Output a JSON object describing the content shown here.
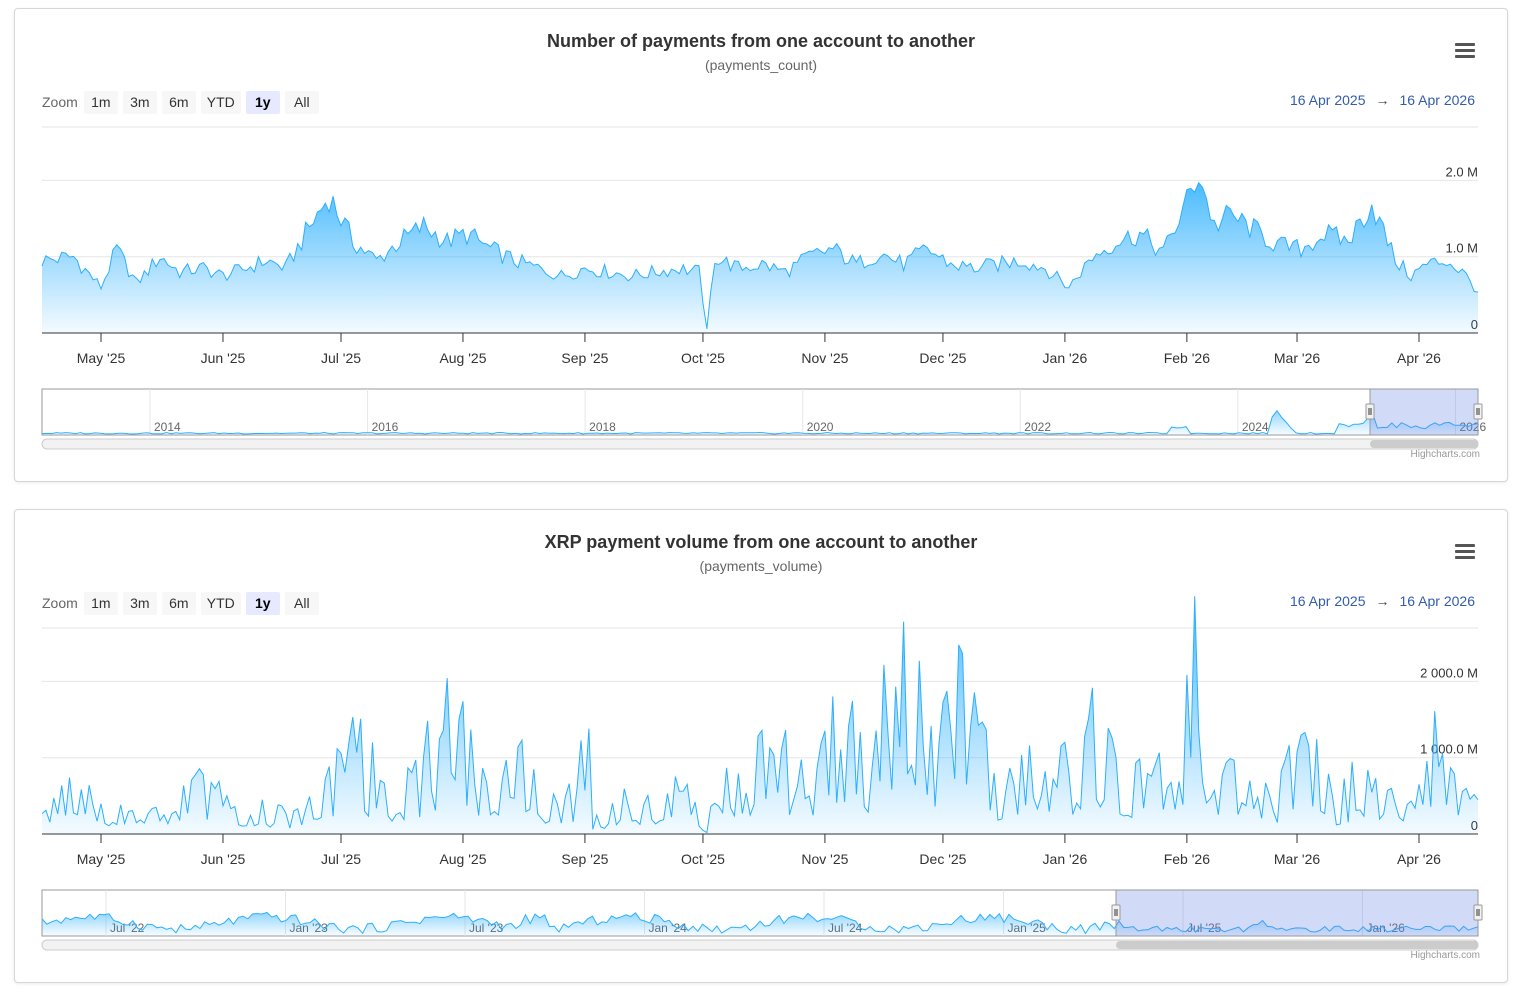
{
  "charts": [
    {
      "title": "Number of payments from one account to another",
      "subtitle": "(payments_count)",
      "zoom": {
        "label": "Zoom",
        "buttons": [
          "1m",
          "3m",
          "6m",
          "YTD",
          "1y",
          "All"
        ],
        "active": "1y"
      },
      "range": {
        "from": "16 Apr 2025",
        "arrow": "→",
        "to": "16 Apr 2026"
      },
      "menu_icon": "hamburger-menu-icon",
      "credit": "Highcharts.com",
      "navigator": {
        "labels": [
          "2014",
          "2016",
          "2018",
          "2020",
          "2022",
          "2024",
          "2026"
        ],
        "selection": "16 Apr 2025 – 16 Apr 2026"
      }
    },
    {
      "title": "XRP payment volume from one account to another",
      "subtitle": "(payments_volume)",
      "zoom": {
        "label": "Zoom",
        "buttons": [
          "1m",
          "3m",
          "6m",
          "YTD",
          "1y",
          "All"
        ],
        "active": "1y"
      },
      "range": {
        "from": "16 Apr 2025",
        "arrow": "→",
        "to": "16 Apr 2026"
      },
      "menu_icon": "hamburger-menu-icon",
      "credit": "Highcharts.com",
      "navigator": {
        "labels": [
          "Jul '22",
          "Jan '23",
          "Jul '23",
          "Jan '24",
          "Jul '24",
          "Jan '25",
          "Jul '25",
          "Jan '26"
        ],
        "selection": "16 Apr 2025 – 16 Apr 2026"
      }
    }
  ],
  "chart_data": [
    {
      "type": "area",
      "title": "Number of payments from one account to another",
      "subtitle": "(payments_count)",
      "x_start": "2025-04-16",
      "x_end": "2026-04-16",
      "x_ticks": [
        "May '25",
        "Jun '25",
        "Jul '25",
        "Aug '25",
        "Sep '25",
        "Oct '25",
        "Nov '25",
        "Dec '25",
        "Jan '26",
        "Feb '26",
        "Mar '26",
        "Apr '26"
      ],
      "y_ticks": [
        "0",
        "1.0 M",
        "2.0 M"
      ],
      "ylim": [
        0,
        2.0
      ],
      "y_unit": "M",
      "grid": true,
      "color": "#2caffe",
      "series": [
        {
          "x": [
            "2025-04-16",
            "2025-04-24",
            "2025-05-01",
            "2025-05-05",
            "2025-05-10",
            "2025-05-16",
            "2025-05-21",
            "2025-05-27",
            "2025-06-01",
            "2025-06-07",
            "2025-06-12",
            "2025-06-17",
            "2025-06-22",
            "2025-06-28",
            "2025-07-04",
            "2025-07-10",
            "2025-07-16",
            "2025-07-22",
            "2025-07-28",
            "2025-08-02",
            "2025-08-08",
            "2025-08-14",
            "2025-08-20",
            "2025-08-26",
            "2025-09-01",
            "2025-09-07",
            "2025-09-13",
            "2025-09-19",
            "2025-09-25",
            "2025-09-30",
            "2025-10-02",
            "2025-10-04",
            "2025-10-10",
            "2025-10-16",
            "2025-10-22",
            "2025-10-28",
            "2025-11-03",
            "2025-11-09",
            "2025-11-15",
            "2025-11-21",
            "2025-11-27",
            "2025-12-03",
            "2025-12-09",
            "2025-12-15",
            "2025-12-21",
            "2025-12-27",
            "2026-01-02",
            "2026-01-08",
            "2026-01-14",
            "2026-01-20",
            "2026-01-26",
            "2026-01-31",
            "2026-02-04",
            "2026-02-08",
            "2026-02-12",
            "2026-02-18",
            "2026-02-24",
            "2026-03-02",
            "2026-03-08",
            "2026-03-14",
            "2026-03-20",
            "2026-03-26",
            "2026-03-30",
            "2026-04-03",
            "2026-04-08",
            "2026-04-12",
            "2026-04-16"
          ],
          "values": [
            0.95,
            1.0,
            0.6,
            1.1,
            0.65,
            1.0,
            0.8,
            0.85,
            0.75,
            0.85,
            0.95,
            0.85,
            1.3,
            1.8,
            1.2,
            0.95,
            1.2,
            1.4,
            1.2,
            1.3,
            1.1,
            0.95,
            0.85,
            0.75,
            0.85,
            0.8,
            0.75,
            0.8,
            0.85,
            0.8,
            0.05,
            1.0,
            0.85,
            0.9,
            0.8,
            1.0,
            1.1,
            0.9,
            1.05,
            0.9,
            1.1,
            0.9,
            0.85,
            0.9,
            0.95,
            0.85,
            0.6,
            1.0,
            1.2,
            1.3,
            1.05,
            1.6,
            2.1,
            1.4,
            1.55,
            1.35,
            1.15,
            1.1,
            1.3,
            1.2,
            1.7,
            0.95,
            0.75,
            0.9,
            0.95,
            0.8,
            0.55
          ]
        }
      ]
    },
    {
      "type": "area",
      "title": "XRP payment volume from one account to another",
      "subtitle": "(payments_volume)",
      "x_start": "2025-04-16",
      "x_end": "2026-04-16",
      "x_ticks": [
        "May '25",
        "Jun '25",
        "Jul '25",
        "Aug '25",
        "Sep '25",
        "Oct '25",
        "Nov '25",
        "Dec '25",
        "Jan '26",
        "Feb '26",
        "Mar '26",
        "Apr '26"
      ],
      "y_ticks": [
        "0",
        "1 000.0 M",
        "2 000.0 M"
      ],
      "ylim": [
        0,
        2000
      ],
      "y_unit": "M",
      "grid": true,
      "color": "#2caffe",
      "series": [
        {
          "x": [
            "2025-04-16",
            "2025-04-24",
            "2025-05-02",
            "2025-05-10",
            "2025-05-18",
            "2025-05-26",
            "2025-06-03",
            "2025-06-11",
            "2025-06-19",
            "2025-06-27",
            "2025-07-05",
            "2025-07-13",
            "2025-07-21",
            "2025-07-29",
            "2025-08-06",
            "2025-08-14",
            "2025-08-22",
            "2025-08-30",
            "2025-09-01",
            "2025-09-03",
            "2025-09-11",
            "2025-09-19",
            "2025-09-27",
            "2025-10-02",
            "2025-10-04",
            "2025-10-12",
            "2025-10-20",
            "2025-10-28",
            "2025-11-05",
            "2025-11-13",
            "2025-11-21",
            "2025-11-29",
            "2025-12-07",
            "2025-12-15",
            "2025-12-23",
            "2025-12-31",
            "2026-01-08",
            "2026-01-16",
            "2026-01-24",
            "2026-01-30",
            "2026-02-03",
            "2026-02-07",
            "2026-02-15",
            "2026-02-23",
            "2026-03-03",
            "2026-03-11",
            "2026-03-19",
            "2026-03-27",
            "2026-04-02",
            "2026-04-06",
            "2026-04-12",
            "2026-04-16"
          ],
          "values": [
            400,
            750,
            300,
            450,
            200,
            900,
            300,
            350,
            250,
            600,
            1300,
            500,
            950,
            1700,
            700,
            1200,
            550,
            600,
            2100,
            200,
            500,
            400,
            700,
            50,
            900,
            700,
            1400,
            600,
            1600,
            1100,
            2600,
            1000,
            2200,
            500,
            1200,
            900,
            1500,
            600,
            1000,
            700,
            2600,
            500,
            900,
            400,
            1400,
            500,
            900,
            300,
            1000,
            1300,
            500,
            400
          ]
        }
      ]
    }
  ]
}
